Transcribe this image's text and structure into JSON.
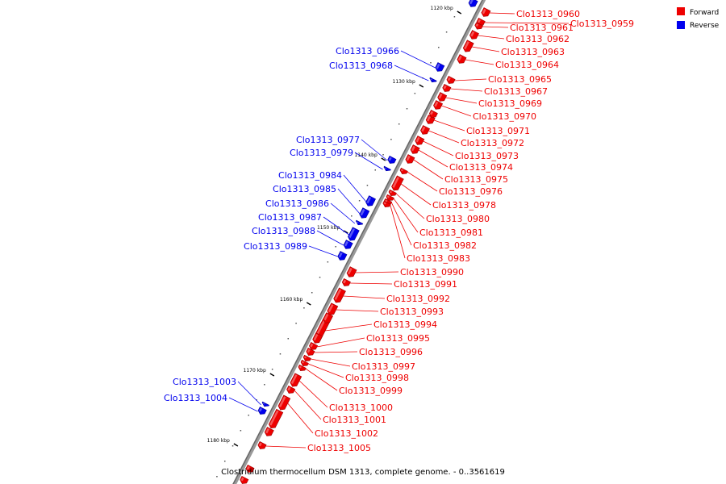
{
  "caption": "Clostridium thermocellum DSM 1313, complete genome. - 0..3561619",
  "legend": [
    {
      "label": "Forward",
      "color": "#ee0000"
    },
    {
      "label": "Reverse",
      "color": "#0000ee"
    }
  ],
  "ticks": [
    "1120 kbp",
    "1130 kbp",
    "1140 kbp",
    "1150 kbp",
    "1160 kbp",
    "1170 kbp",
    "1180 kbp"
  ],
  "forward_genes": [
    "Clo1313_0959",
    "Clo1313_0960",
    "Clo1313_0961",
    "Clo1313_0962",
    "Clo1313_0963",
    "Clo1313_0964",
    "Clo1313_0965",
    "Clo1313_0967",
    "Clo1313_0969",
    "Clo1313_0970",
    "Clo1313_0971",
    "Clo1313_0972",
    "Clo1313_0973",
    "Clo1313_0974",
    "Clo1313_0975",
    "Clo1313_0976",
    "Clo1313_0978",
    "Clo1313_0980",
    "Clo1313_0981",
    "Clo1313_0982",
    "Clo1313_0983",
    "Clo1313_0990",
    "Clo1313_0991",
    "Clo1313_0992",
    "Clo1313_0993",
    "Clo1313_0994",
    "Clo1313_0995",
    "Clo1313_0996",
    "Clo1313_0997",
    "Clo1313_0998",
    "Clo1313_0999",
    "Clo1313_1000",
    "Clo1313_1001",
    "Clo1313_1002",
    "Clo1313_1005"
  ],
  "reverse_genes": [
    "Clo1313_0966",
    "Clo1313_0968",
    "Clo1313_0977",
    "Clo1313_0979",
    "Clo1313_0984",
    "Clo1313_0985",
    "Clo1313_0986",
    "Clo1313_0987",
    "Clo1313_0988",
    "Clo1313_0989",
    "Clo1313_1003",
    "Clo1313_1004"
  ]
}
